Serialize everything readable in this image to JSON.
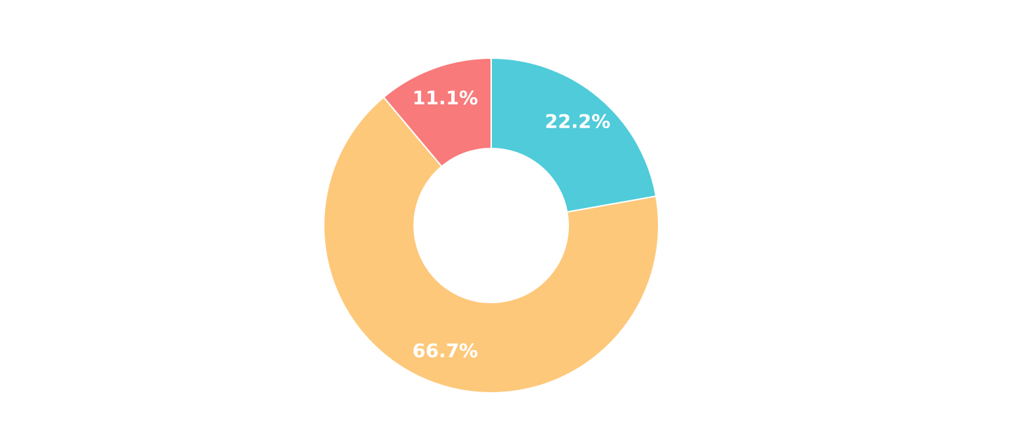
{
  "chart_data": {
    "type": "donut",
    "values": [
      22.2,
      66.7,
      11.1
    ],
    "value_labels": [
      "22.2%",
      "66.7%",
      "11.1%"
    ],
    "colors": [
      "#4fcbd9",
      "#fdc87a",
      "#f87a7a"
    ]
  }
}
